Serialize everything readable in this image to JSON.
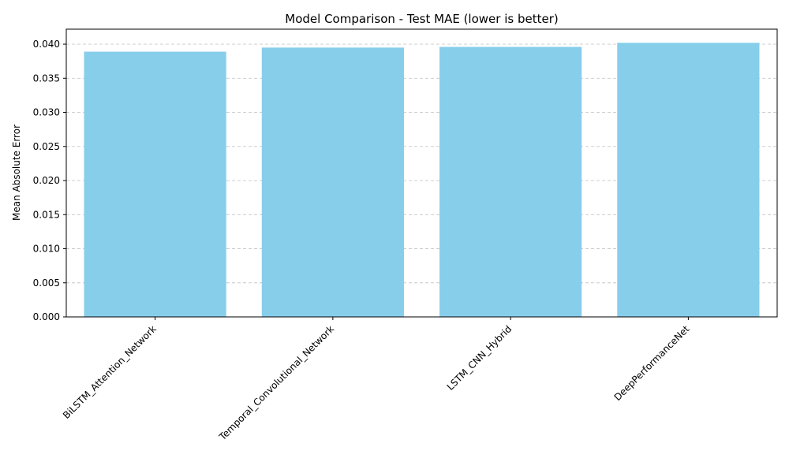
{
  "chart_data": {
    "type": "bar",
    "title": "Model Comparison - Test MAE (lower is better)",
    "xlabel": "",
    "ylabel": "Mean Absolute Error",
    "categories": [
      "BiLSTM_Attention_Network",
      "Temporal_Convolutional_Network",
      "LSTM_CNN_Hybrid",
      "DeepPerformanceNet"
    ],
    "values": [
      0.0389,
      0.0395,
      0.0396,
      0.0402
    ],
    "ylim": [
      0.0,
      0.0422
    ],
    "yticks": [
      0.0,
      0.005,
      0.01,
      0.015,
      0.02,
      0.025,
      0.03,
      0.035,
      0.04
    ],
    "ytick_labels": [
      "0.000",
      "0.005",
      "0.010",
      "0.015",
      "0.020",
      "0.025",
      "0.030",
      "0.035",
      "0.040"
    ],
    "grid": "y-dashed",
    "bar_color": "#87CEEB",
    "grid_color": "#c8c8c8"
  }
}
